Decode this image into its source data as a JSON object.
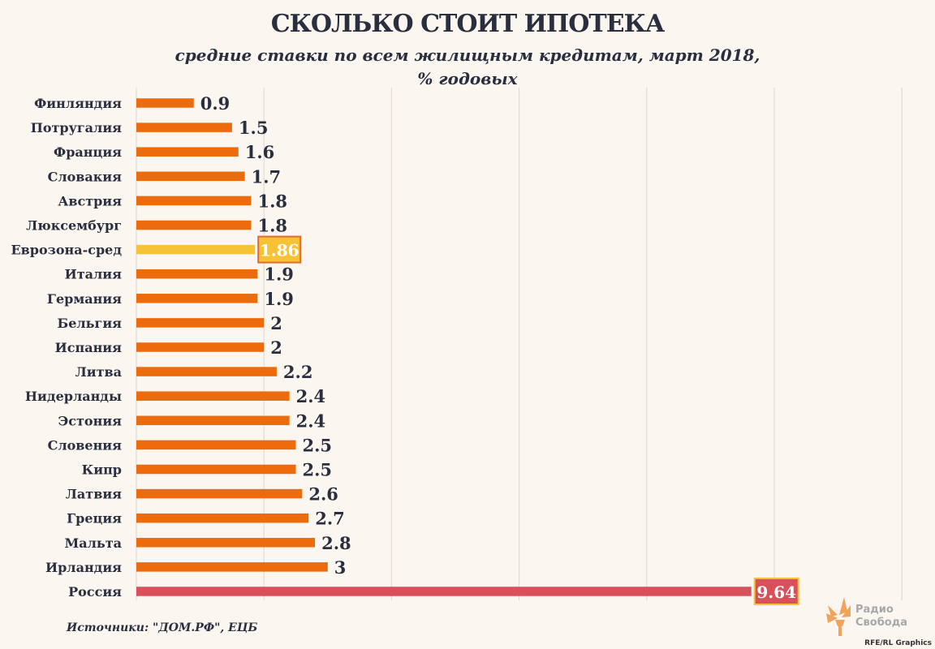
{
  "title": "СКОЛЬКО СТОИТ ИПОТЕКА",
  "subtitle_line1": "средние ставки по всем жилищным кредитам, март 2018,",
  "subtitle_line2": "% годовых",
  "source": "Источники: \"ДОМ.РФ\", ЕЦБ",
  "logo": {
    "line1": "Радио",
    "line2": "Свобода"
  },
  "credit": "RFE/RL Graphics",
  "colors": {
    "bar": "#ec6b0d",
    "highlight": "#f7c235",
    "highlight_border": "#e26c30",
    "russia": "#d8505a",
    "russia_label_border": "#f7c235",
    "text": "#2a2f3f",
    "grid": "#dcd6d1",
    "background": "#fcf6f1"
  },
  "chart_data": {
    "type": "bar",
    "orientation": "horizontal",
    "title": "СКОЛЬКО СТОИТ ИПОТЕКА",
    "xlim": [
      0,
      12
    ],
    "grid": true,
    "categories": [
      "Финляндия",
      "Потругалия",
      "Франция",
      "Словакия",
      "Австрия",
      "Люксембург",
      "Еврозона-сред",
      "Италия",
      "Германия",
      "Бельгия",
      "Испания",
      "Литва",
      "Нидерланды",
      "Эстония",
      "Словения",
      "Кипр",
      "Латвия",
      "Греция",
      "Мальта",
      "Ирландия",
      "Россия"
    ],
    "values": [
      0.9,
      1.5,
      1.6,
      1.7,
      1.8,
      1.8,
      1.86,
      1.9,
      1.9,
      2,
      2,
      2.2,
      2.4,
      2.4,
      2.5,
      2.5,
      2.6,
      2.7,
      2.8,
      3,
      9.64
    ],
    "labels": [
      "0.9",
      "1.5",
      "1.6",
      "1.7",
      "1.8",
      "1.8",
      "1.86",
      "1.9",
      "1.9",
      "2",
      "2",
      "2.2",
      "2.4",
      "2.4",
      "2.5",
      "2.5",
      "2.6",
      "2.7",
      "2.8",
      "3",
      "9.64"
    ],
    "highlight": [
      "Еврозона-сред",
      "Россия"
    ]
  }
}
